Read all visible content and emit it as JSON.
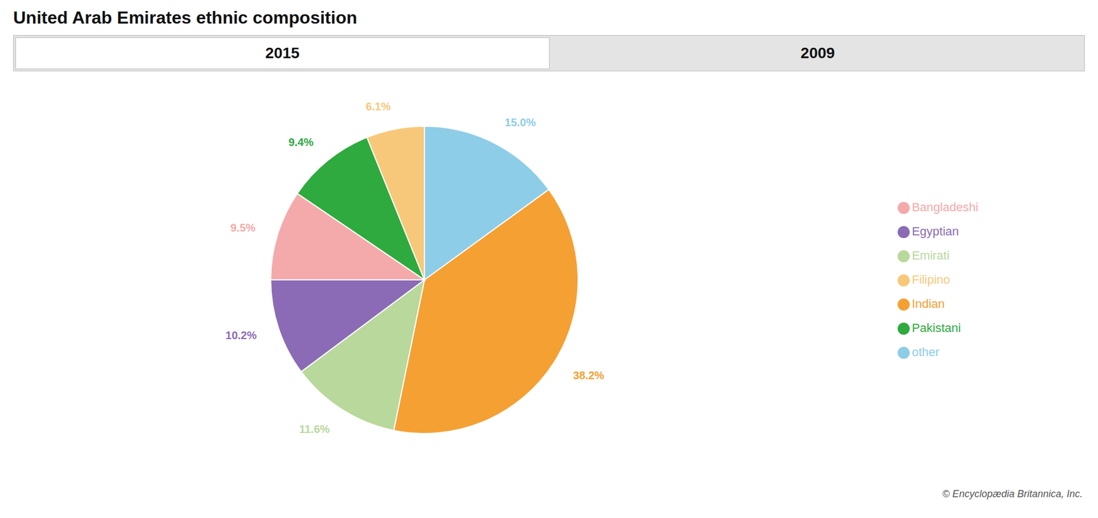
{
  "chart_data": {
    "type": "pie",
    "title": "United Arab Emirates ethnic composition",
    "categories": [
      "other",
      "Indian",
      "Emirati",
      "Egyptian",
      "Bangladeshi",
      "Pakistani",
      "Filipino"
    ],
    "values": [
      15.0,
      38.2,
      11.6,
      10.2,
      9.5,
      9.4,
      6.1
    ],
    "value_labels": [
      "15.0%",
      "38.2%",
      "11.6%",
      "10.2%",
      "9.5%",
      "9.4%",
      "6.1%"
    ],
    "colors": [
      "#8ECDE8",
      "#F5A033",
      "#B8D89C",
      "#8B6BB5",
      "#F4AAAA",
      "#2EAA3F",
      "#F8C87A"
    ],
    "data_labels": true,
    "legend": "right",
    "annotations": [
      "2015",
      "2009",
      "© Encyclopædia Britannica, Inc."
    ]
  }
}
